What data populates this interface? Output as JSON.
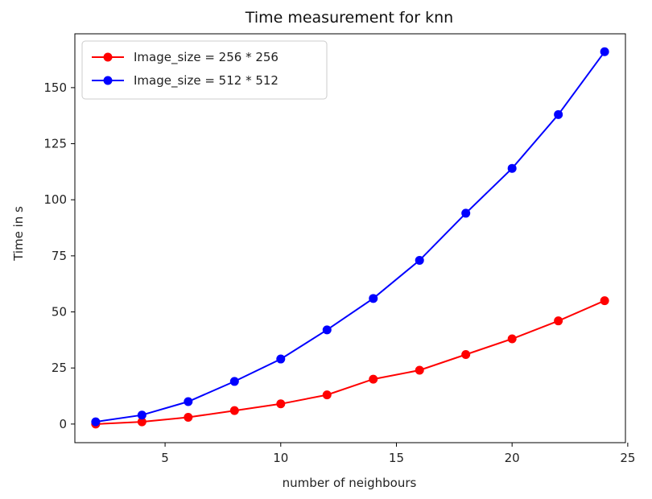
{
  "chart_data": {
    "type": "line",
    "title": "Time measurement for knn",
    "xlabel": "number of neighbours",
    "ylabel": "Time in s",
    "xlim": [
      1.1,
      24.9
    ],
    "ylim": [
      -8.3,
      174
    ],
    "xticks": [
      5,
      10,
      15,
      20,
      25
    ],
    "yticks": [
      0,
      25,
      50,
      75,
      100,
      125,
      150
    ],
    "grid": false,
    "legend_position": "upper-left",
    "x": [
      2,
      4,
      6,
      8,
      10,
      12,
      14,
      16,
      18,
      20,
      22,
      24
    ],
    "series": [
      {
        "name": "Image_size = 256 * 256",
        "color": "#ff0000",
        "marker": "circle",
        "values": [
          0,
          1,
          3,
          6,
          9,
          13,
          20,
          24,
          31,
          38,
          46,
          55
        ]
      },
      {
        "name": "Image_size = 512 * 512",
        "color": "#0000ff",
        "marker": "circle",
        "values": [
          1,
          4,
          10,
          19,
          29,
          42,
          56,
          73,
          94,
          114,
          138,
          166
        ]
      }
    ]
  }
}
